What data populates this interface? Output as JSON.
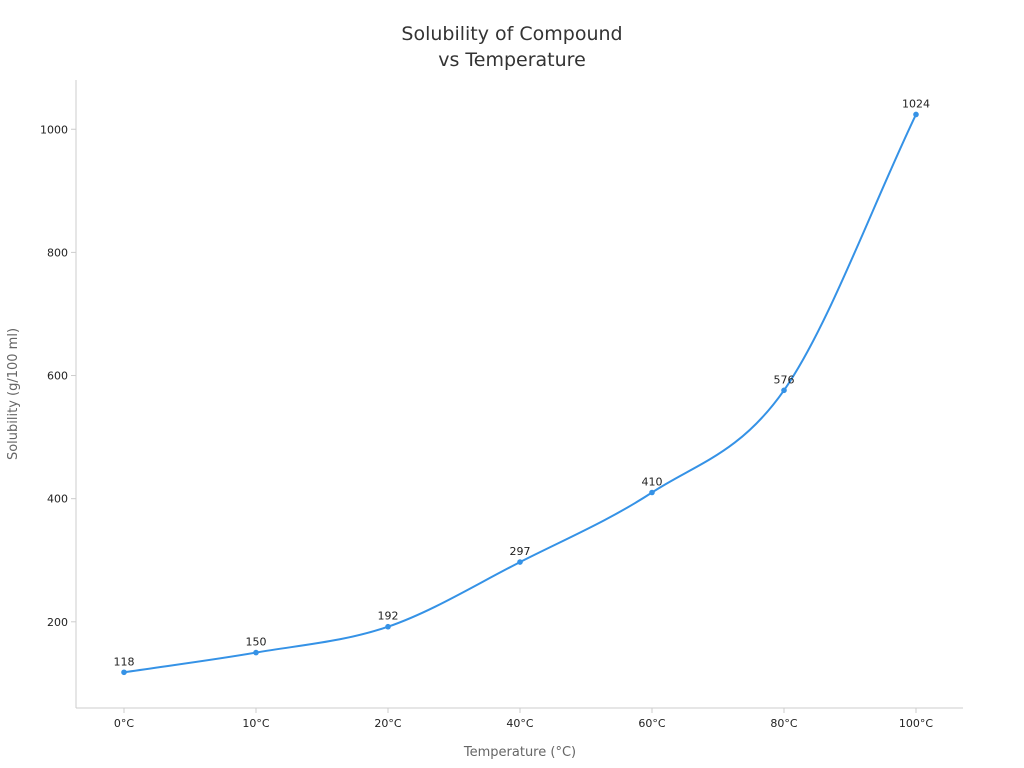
{
  "chart_data": {
    "type": "line",
    "title": [
      "Solubility of Compound",
      "vs Temperature"
    ],
    "xlabel": "Temperature (°C)",
    "ylabel": "Solubility (g/100 ml)",
    "categories": [
      "0°C",
      "10°C",
      "20°C",
      "40°C",
      "60°C",
      "80°C",
      "100°C"
    ],
    "values": [
      118,
      150,
      192,
      297,
      410,
      576,
      1024
    ],
    "data_labels": [
      "118",
      "150",
      "192",
      "297",
      "410",
      "576",
      "1024"
    ],
    "yticks": [
      200,
      400,
      600,
      800,
      1000
    ],
    "ytick_labels": [
      "200",
      "400",
      "600",
      "800",
      "1000"
    ],
    "ylim": [
      60,
      1080
    ],
    "grid": false,
    "smooth": true,
    "colors": {
      "line": "#3592e6",
      "axis": "#cccccc"
    }
  }
}
